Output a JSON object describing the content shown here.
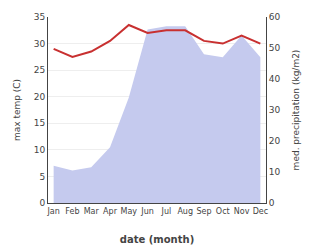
{
  "chart_data": {
    "type": "line",
    "xlabel": "date (month)",
    "ylabel": "max temp (C)",
    "y2label": "med. precipitation (kg/m2)",
    "categories": [
      "Jan",
      "Feb",
      "Mar",
      "Apr",
      "May",
      "Jun",
      "Jul",
      "Aug",
      "Sep",
      "Oct",
      "Nov",
      "Dec"
    ],
    "series": [
      {
        "type": "area",
        "axis": "y2",
        "color": "#c5caee",
        "values": [
          12.0,
          10.5,
          11.5,
          18.0,
          34.0,
          56.0,
          57.0,
          57.0,
          48.0,
          47.0,
          54.0,
          47.0
        ]
      },
      {
        "type": "line",
        "color": "#c83030",
        "values": [
          29.0,
          27.5,
          28.5,
          30.5,
          33.5,
          32.0,
          32.5,
          32.5,
          30.5,
          30.0,
          31.5,
          30.0
        ]
      }
    ],
    "ylim": [
      0,
      35
    ],
    "yticks": [
      0,
      5,
      10,
      15,
      20,
      25,
      30,
      35
    ],
    "y2lim": [
      0,
      60
    ],
    "y2ticks": [
      0,
      10,
      20,
      30,
      40,
      50,
      60
    ],
    "grid": true
  }
}
